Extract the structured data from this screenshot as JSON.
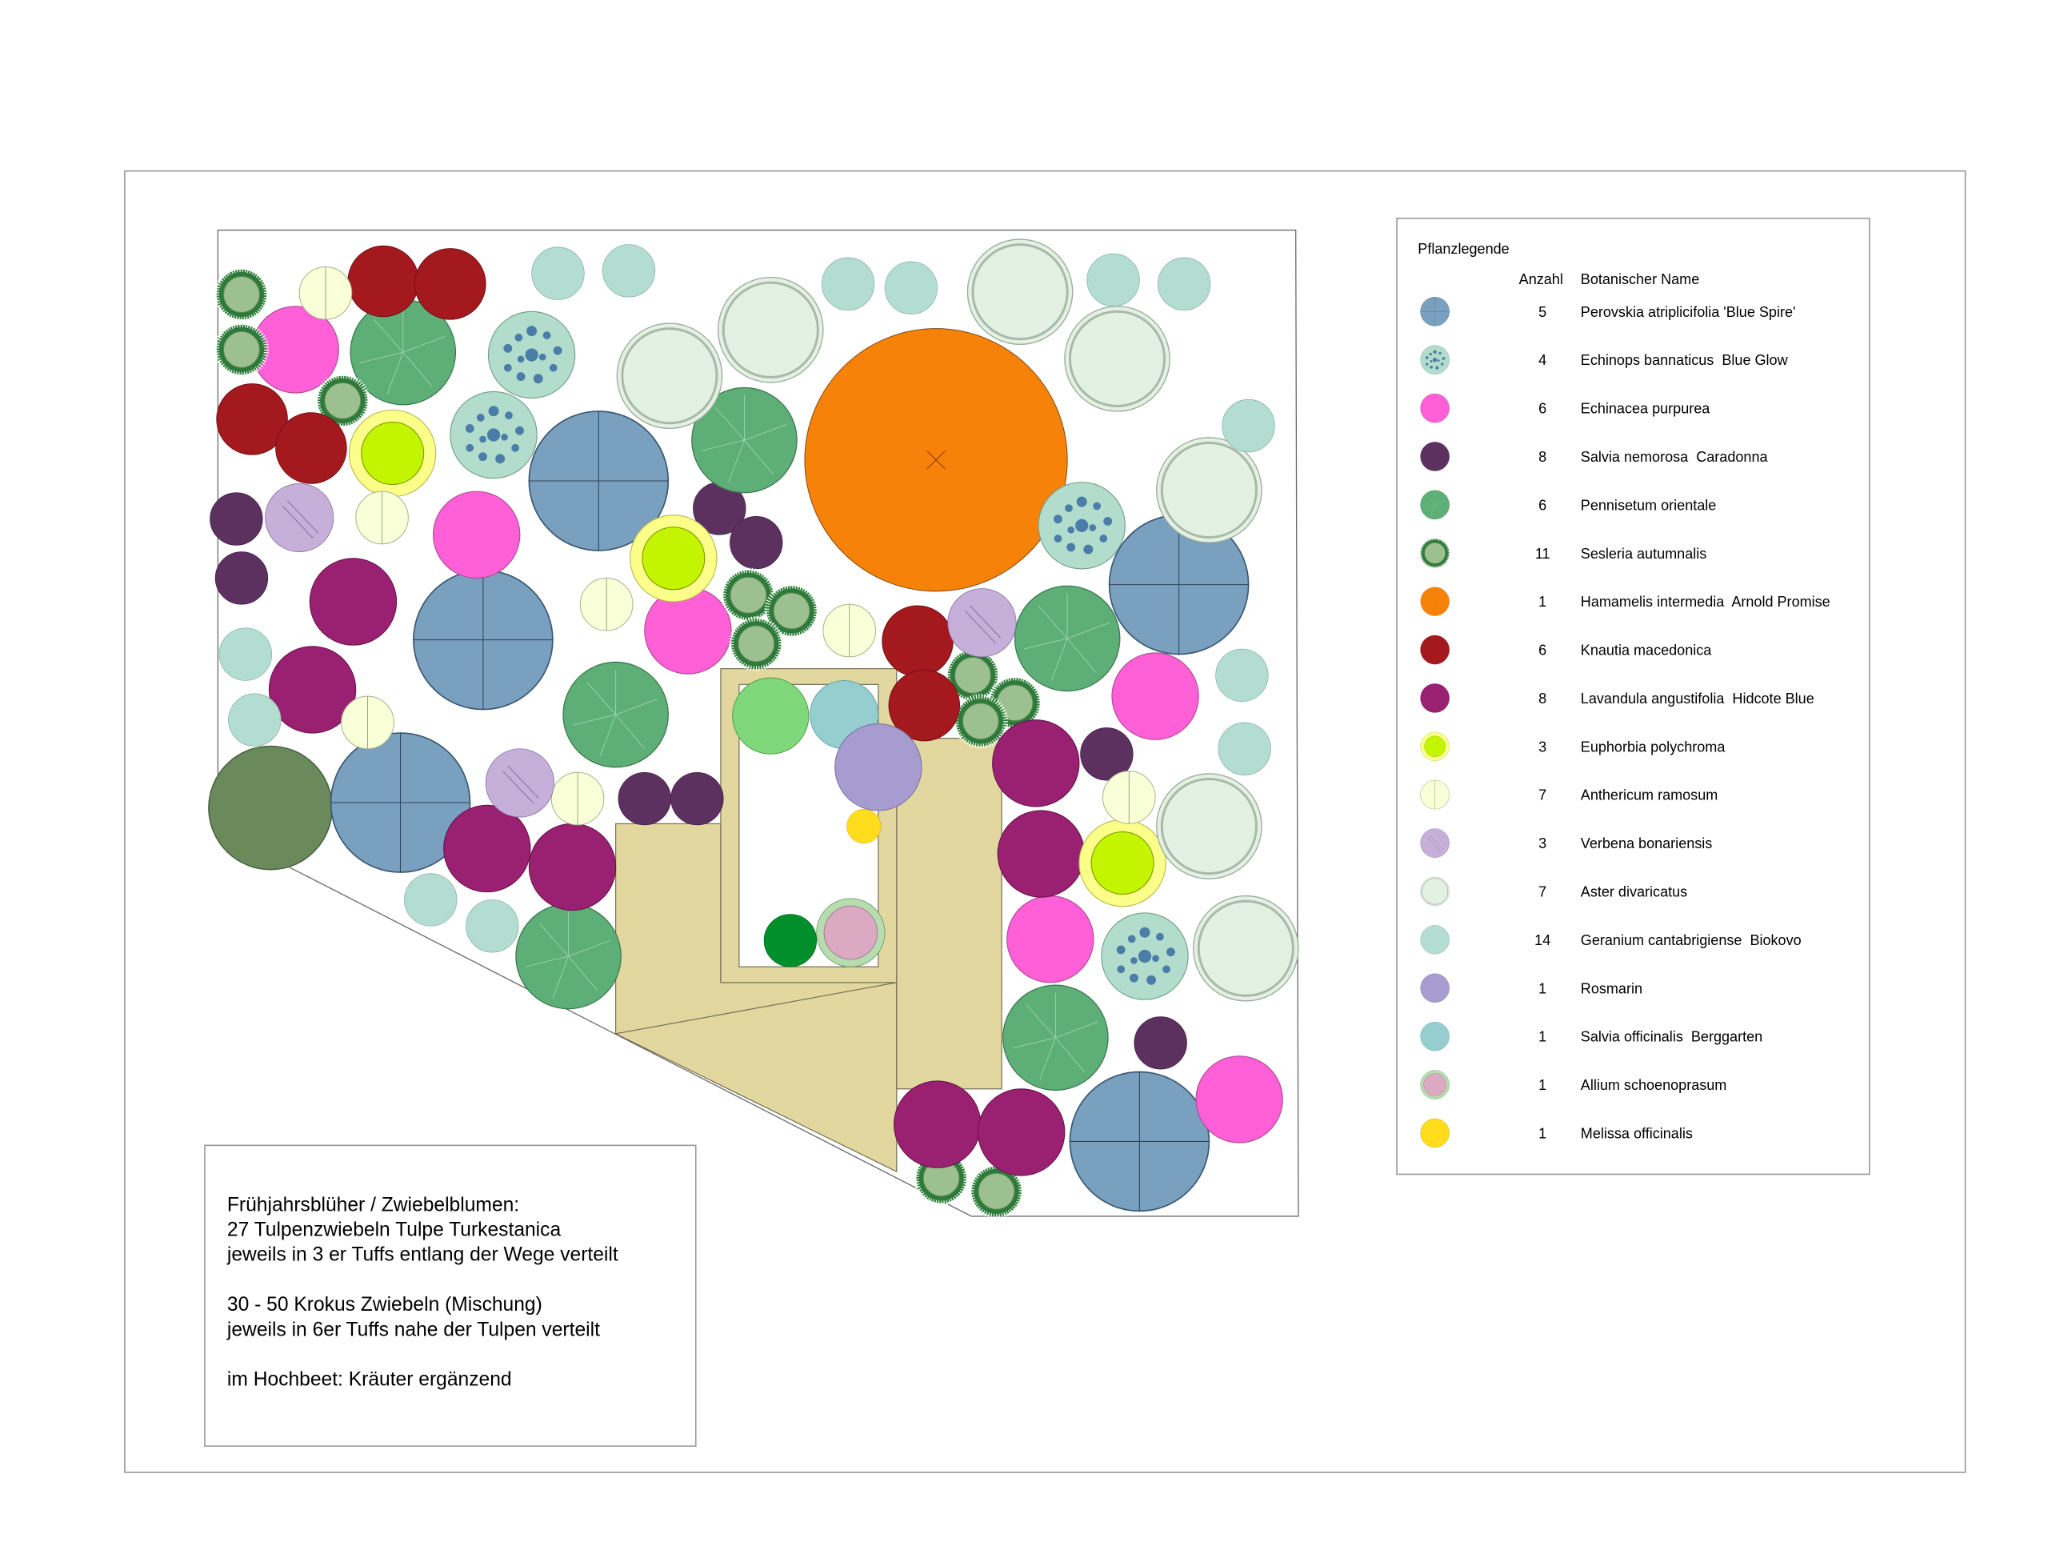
{
  "legend": {
    "title": "Pflanzlegende",
    "col_count": "Anzahl",
    "col_name": "Botanischer Name",
    "items": [
      {
        "count": "5",
        "name": "Perovskia atriplicifolia 'Blue Spire'",
        "style": "perovskia"
      },
      {
        "count": "4",
        "name": "Echinops bannaticus  Blue Glow",
        "style": "echinops"
      },
      {
        "count": "6",
        "name": "Echinacea purpurea",
        "style": "echinacea"
      },
      {
        "count": "8",
        "name": "Salvia nemorosa  Caradonna",
        "style": "salvia"
      },
      {
        "count": "6",
        "name": "Pennisetum orientale",
        "style": "pennisetum"
      },
      {
        "count": "11",
        "name": "Sesleria autumnalis",
        "style": "sesleria"
      },
      {
        "count": "1",
        "name": "Hamamelis intermedia  Arnold Promise",
        "style": "hamamelis"
      },
      {
        "count": "6",
        "name": "Knautia macedonica",
        "style": "knautia"
      },
      {
        "count": "8",
        "name": "Lavandula angustifolia  Hidcote Blue",
        "style": "lavandula"
      },
      {
        "count": "3",
        "name": "Euphorbia polychroma",
        "style": "euphorbia"
      },
      {
        "count": "7",
        "name": "Anthericum ramosum",
        "style": "anthericum"
      },
      {
        "count": "3",
        "name": "Verbena bonariensis",
        "style": "verbena"
      },
      {
        "count": "7",
        "name": "Aster divaricatus",
        "style": "aster"
      },
      {
        "count": "14",
        "name": "Geranium cantabrigiense  Biokovo",
        "style": "geranium"
      },
      {
        "count": "1",
        "name": "Rosmarin",
        "style": "rosmarin"
      },
      {
        "count": "1",
        "name": "Salvia officinalis  Berggarten",
        "style": "salviaoff"
      },
      {
        "count": "1",
        "name": "Allium schoenoprasum",
        "style": "allium"
      },
      {
        "count": "1",
        "name": "Melissa officinalis",
        "style": "melissa"
      }
    ]
  },
  "notes": {
    "line1": "Frühjahrsblüher / Zwiebelblumen:",
    "line2": "27 Tulpenzwiebeln Tulpe Turkestanica",
    "line3": "jeweils in 3 er Tuffs entlang der Wege verteilt",
    "line4": "30 - 50 Krokus Zwiebeln (Mischung)",
    "line5": "jeweils in 6er Tuffs nahe der Tulpen verteilt",
    "line6": "im Hochbeet: Kräuter ergänzend"
  },
  "colors": {
    "perovskia": "#7aa0c0",
    "echinops": "#b2dccb",
    "echinacea": "#ff5fd7",
    "salvia": "#5c3160",
    "pennisetum": "#5daf77",
    "sesleria": "#9cc08f",
    "hamamelis": "#f7820a",
    "knautia": "#a3191e",
    "lavandula": "#9a2172",
    "euphorbia": "#c4f500",
    "anthericum": "#f9ffd6",
    "verbena": "#c6b0d9",
    "aster": "#e3f1e3",
    "geranium": "#b3ddd0",
    "rosmarin": "#a79ccf",
    "salviaoff": "#96cdcf",
    "allium": "#dba9c2",
    "melissa": "#ffdd1c",
    "path": "#e3d7a0",
    "large_tree": "#6a8a5c",
    "herb_green": "#7fd97a",
    "herb_dark": "#008f2a"
  }
}
